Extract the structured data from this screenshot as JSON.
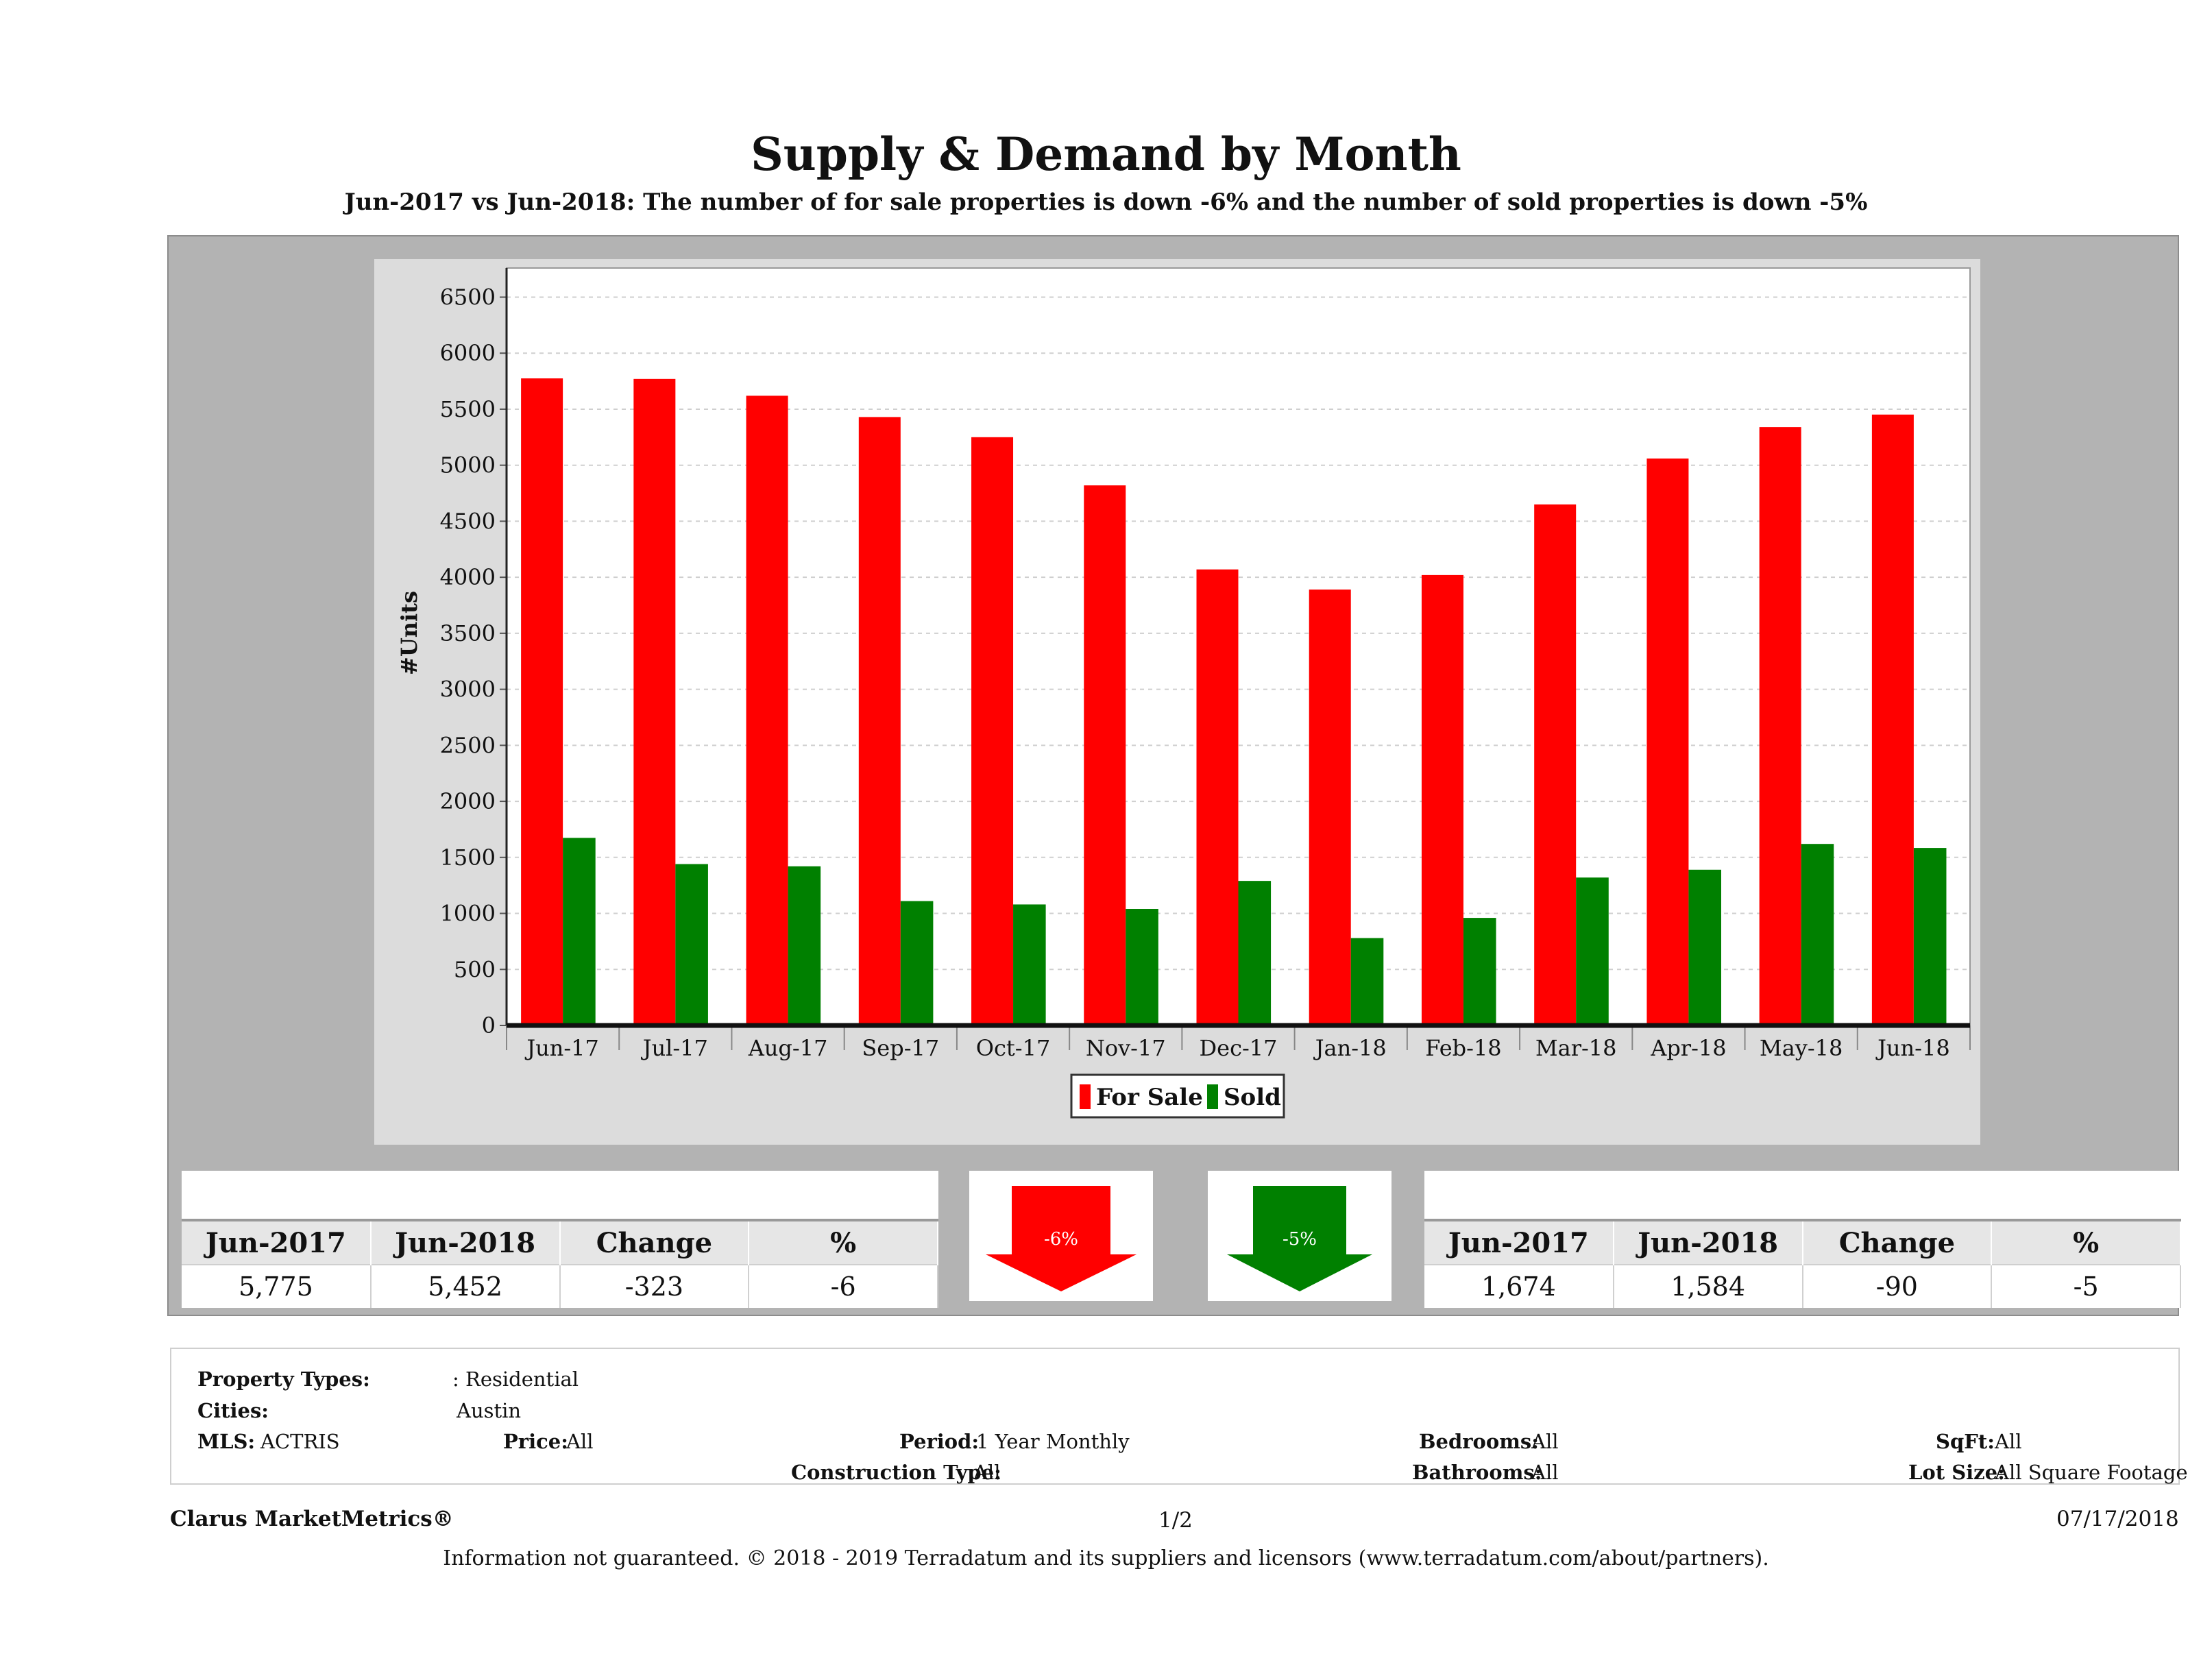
{
  "header": {
    "title": "Supply & Demand by Month",
    "subtitle": "Jun-2017 vs Jun-2018: The number of for sale properties is down -6% and the number of sold properties is down -5%"
  },
  "chart_data": {
    "type": "bar",
    "title": "Supply & Demand by Month",
    "xlabel": "",
    "ylabel": "#Units",
    "ylim": [
      0,
      6500
    ],
    "yticks": [
      "0",
      "500",
      "1000",
      "1500",
      "2000",
      "2500",
      "3000",
      "3500",
      "4000",
      "4500",
      "5000",
      "5500",
      "6000",
      "6500"
    ],
    "categories": [
      "Jun-17",
      "Jul-17",
      "Aug-17",
      "Sep-17",
      "Oct-17",
      "Nov-17",
      "Dec-17",
      "Jan-18",
      "Feb-18",
      "Mar-18",
      "Apr-18",
      "May-18",
      "Jun-18"
    ],
    "series": [
      {
        "name": "For Sale",
        "color": "#ff0000",
        "values": [
          5775,
          5770,
          5620,
          5430,
          5250,
          4820,
          4070,
          3890,
          4020,
          4650,
          5060,
          5340,
          5452
        ]
      },
      {
        "name": "Sold",
        "color": "#008000",
        "values": [
          1674,
          1440,
          1420,
          1110,
          1080,
          1040,
          1290,
          780,
          960,
          1320,
          1390,
          1620,
          1584
        ]
      }
    ],
    "legend": "bottom-center",
    "grid": true
  },
  "for_sale_table": {
    "headers": [
      "Jun-2017",
      "Jun-2018",
      "Change",
      "%"
    ],
    "values": [
      "5,775",
      "5,452",
      "-323",
      "-6"
    ]
  },
  "sold_table": {
    "headers": [
      "Jun-2017",
      "Jun-2018",
      "Change",
      "%"
    ],
    "values": [
      "1,674",
      "1,584",
      "-90",
      "-5"
    ]
  },
  "arrows": {
    "for_sale": {
      "label": "-6%",
      "color": "#ff0000"
    },
    "sold": {
      "label": "-5%",
      "color": "#008000"
    }
  },
  "properties": {
    "property_types_label": "Property Types:",
    "property_types_value": ": Residential",
    "cities_label": "Cities:",
    "cities_value": "Austin",
    "mls_label": "MLS:",
    "mls_value": "ACTRIS",
    "price_label": "Price:",
    "price_value": "All",
    "period_label": "Period:",
    "period_value": "1 Year Monthly",
    "construction_label": "Construction Type:",
    "construction_value": "All",
    "bedrooms_label": "Bedrooms:",
    "bedrooms_value": "All",
    "bathrooms_label": "Bathrooms:",
    "bathrooms_value": "All",
    "sqft_label": "SqFt:",
    "sqft_value": "All",
    "lotsize_label": "Lot Size:",
    "lotsize_value": "All Square Footage"
  },
  "footer": {
    "brand": "Clarus MarketMetrics®",
    "page": "1/2",
    "date": "07/17/2018",
    "disclaimer": "Information not guaranteed. © 2018 - 2019 Terradatum and its suppliers and licensors (www.terradatum.com/about/partners)."
  }
}
